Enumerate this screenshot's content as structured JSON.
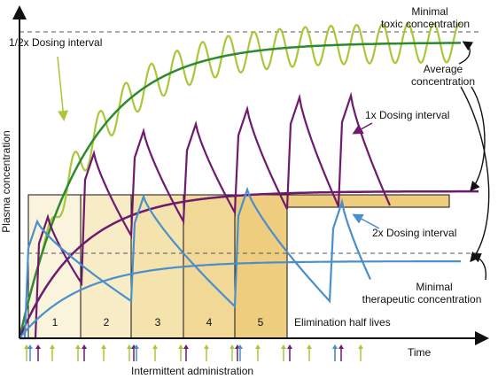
{
  "labels": {
    "y_axis": "Plasma concentration",
    "x_axis": "Time",
    "toxic_line1": "Minimal",
    "toxic_line2": "toxic concentration",
    "half_dosing": "1/2x Dosing interval",
    "average_line1": "Average",
    "average_line2": "concentration",
    "one_x_dosing": "1x Dosing interval",
    "two_x_dosing": "2x Dosing interval",
    "therapeutic_line1": "Minimal",
    "therapeutic_line2": "therapeutic concentration",
    "elimination": "Elimination half lives",
    "admin": "Intermittent administration"
  },
  "half_lives": [
    "1",
    "2",
    "3",
    "4",
    "5"
  ],
  "colors": {
    "half_dosing": "#a8c83a",
    "half_average": "#2f8a2f",
    "one_x": "#6e1a6e",
    "two_x": "#4a8fcc",
    "half_life_fill": "#f0cf7a",
    "axis": "#111111",
    "threshold": "#555555"
  }
}
